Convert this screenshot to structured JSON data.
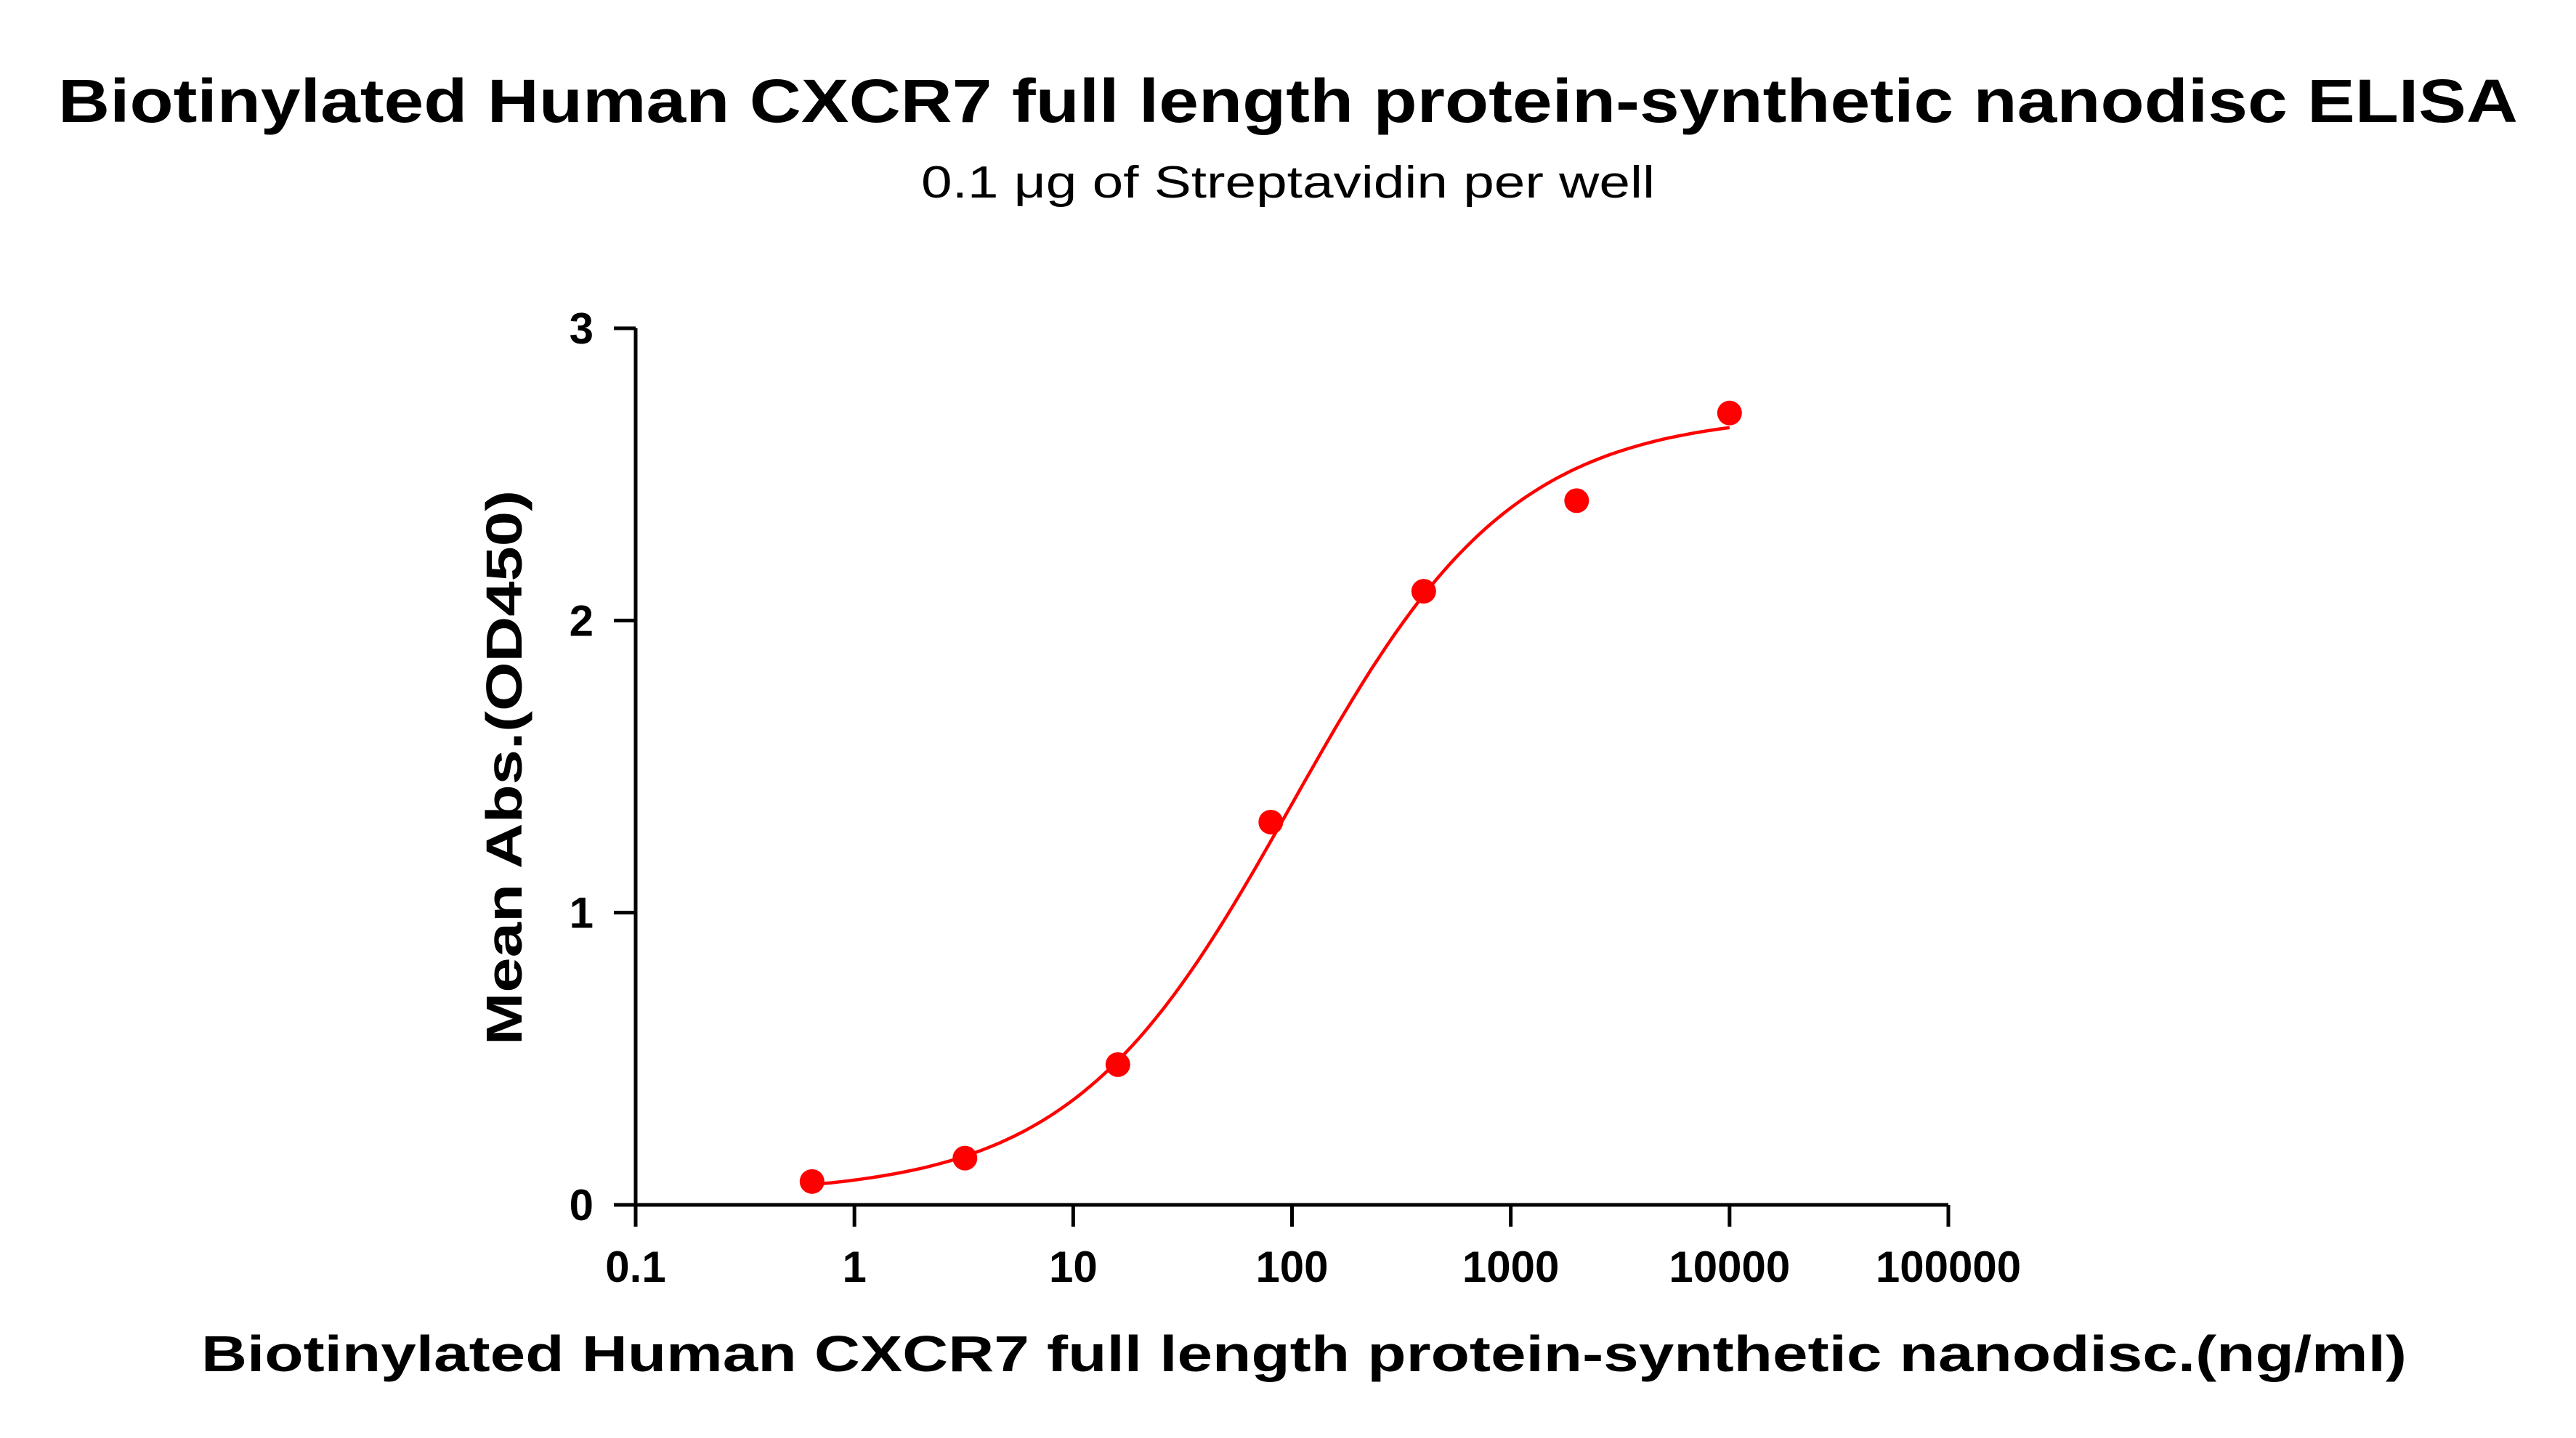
{
  "chart_data": {
    "type": "scatter",
    "title": "Biotinylated Human CXCR7 full length protein-synthetic nanodisc ELISA",
    "subtitle": "0.1 μg of Streptavidin per well",
    "xlabel": "Biotinylated Human CXCR7 full length protein-synthetic nanodisc.(ng/ml)",
    "ylabel": "Mean Abs.(OD450)",
    "x_scale": "log",
    "xlim": [
      0.1,
      100000
    ],
    "ylim": [
      0,
      3
    ],
    "x_ticks": [
      "0.1",
      "1",
      "10",
      "100",
      "1000",
      "10000",
      "100000"
    ],
    "y_ticks": [
      "0",
      "1",
      "2",
      "3"
    ],
    "grid": false,
    "legend": "none",
    "series": [
      {
        "x": [
          0.64,
          3.2,
          16,
          80,
          400,
          2000,
          10000
        ],
        "y": [
          0.08,
          0.16,
          0.48,
          1.31,
          2.1,
          2.41,
          2.71
        ],
        "color": "#ff0000",
        "marker": "circle",
        "fit": "4PL sigmoidal curve"
      }
    ]
  }
}
